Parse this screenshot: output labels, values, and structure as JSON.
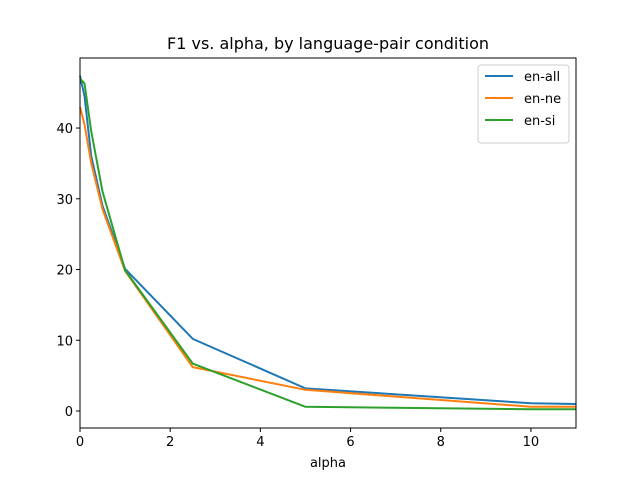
{
  "chart_data": {
    "type": "line",
    "title": "F1 vs. alpha, by language-pair condition",
    "xlabel": "alpha",
    "ylabel": "",
    "xlim": [
      0,
      11
    ],
    "ylim": [
      -2.4,
      49.9
    ],
    "xticks": [
      0,
      2,
      4,
      6,
      8,
      10
    ],
    "yticks": [
      0,
      10,
      20,
      30,
      40
    ],
    "grid": false,
    "legend_position": "top-right",
    "series": [
      {
        "name": "en-all",
        "color": "#1f77b4",
        "x": [
          0,
          0.1,
          0.25,
          0.5,
          1,
          2.5,
          5,
          10,
          11
        ],
        "y": [
          47.4,
          44.5,
          36.0,
          29.0,
          20.1,
          10.2,
          3.2,
          1.1,
          1.0
        ]
      },
      {
        "name": "en-ne",
        "color": "#ff7f0e",
        "x": [
          0,
          0.1,
          0.25,
          0.5,
          1,
          2.5,
          5,
          10,
          11
        ],
        "y": [
          43.0,
          40.5,
          35.0,
          28.5,
          19.8,
          6.2,
          3.0,
          0.6,
          0.6
        ]
      },
      {
        "name": "en-si",
        "color": "#2ca02c",
        "x": [
          0,
          0.1,
          0.25,
          0.5,
          1,
          2.5,
          5,
          10,
          11
        ],
        "y": [
          47.0,
          46.3,
          39.5,
          31.0,
          19.9,
          6.7,
          0.6,
          0.25,
          0.25
        ]
      }
    ]
  }
}
